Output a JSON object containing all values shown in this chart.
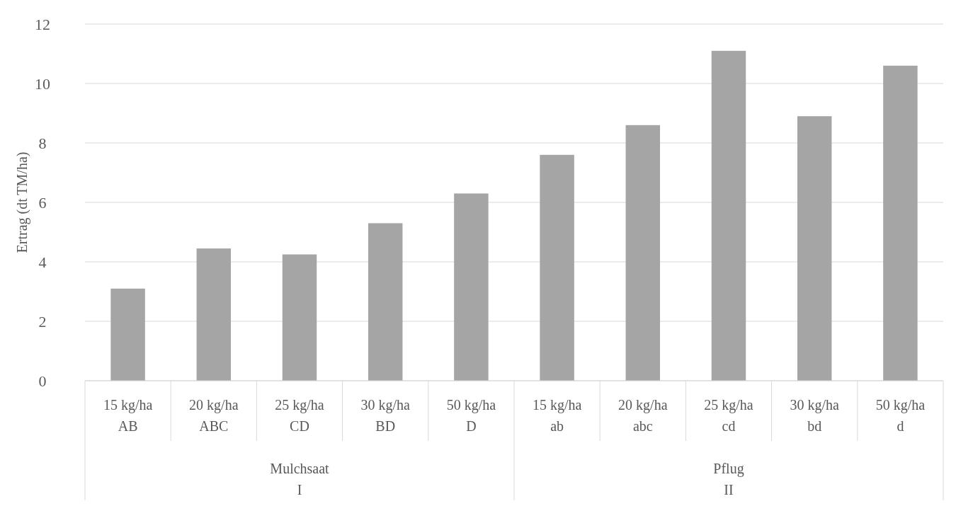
{
  "chart_data": {
    "type": "bar",
    "ylabel": "Ertrag (dt TM/ha)",
    "categories": [
      "15 kg/ha\nAB",
      "20 kg/ha\nABC",
      "25 kg/ha\nCD",
      "30 kg/ha\nBD",
      "50 kg/ha\nD",
      "15 kg/ha\nab",
      "20 kg/ha\nabc",
      "25 kg/ha\ncd",
      "30 kg/ha\nbd",
      "50 kg/ha\nd"
    ],
    "values": [
      3.1,
      4.45,
      4.25,
      5.3,
      6.3,
      7.6,
      8.6,
      11.1,
      8.9,
      10.6
    ],
    "color": "#a5a5a5",
    "ylim": [
      0,
      12
    ],
    "yticks": [
      0,
      2,
      4,
      6,
      8,
      10,
      12
    ],
    "grid": "y",
    "annotations": [
      "Mulchsaat\nI",
      "Pflug\nII"
    ]
  }
}
